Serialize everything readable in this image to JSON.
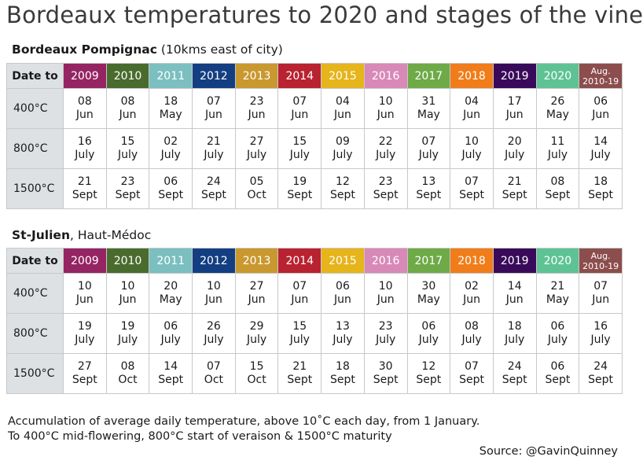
{
  "title": "Bordeaux temperatures to 2020 and stages of the vine",
  "tables": [
    {
      "name_bold": "Bordeaux Pompignac",
      "name_rest": " (10kms east of city)",
      "corner": "Date to",
      "years": [
        "2009",
        "2010",
        "2011",
        "2012",
        "2013",
        "2014",
        "2015",
        "2016",
        "2017",
        "2018",
        "2019",
        "2020"
      ],
      "avg_line1": "Aug.",
      "avg_line2": "2010-19",
      "rows": [
        {
          "label": "400°C",
          "cells": [
            [
              "08",
              "Jun"
            ],
            [
              "08",
              "Jun"
            ],
            [
              "18",
              "May"
            ],
            [
              "07",
              "Jun"
            ],
            [
              "23",
              "Jun"
            ],
            [
              "07",
              "Jun"
            ],
            [
              "04",
              "Jun"
            ],
            [
              "10",
              "Jun"
            ],
            [
              "31",
              "May"
            ],
            [
              "04",
              "Jun"
            ],
            [
              "17",
              "Jun"
            ],
            [
              "26",
              "May"
            ],
            [
              "06",
              "Jun"
            ]
          ]
        },
        {
          "label": "800°C",
          "cells": [
            [
              "16",
              "July"
            ],
            [
              "15",
              "July"
            ],
            [
              "02",
              "July"
            ],
            [
              "21",
              "July"
            ],
            [
              "27",
              "July"
            ],
            [
              "15",
              "July"
            ],
            [
              "09",
              "July"
            ],
            [
              "22",
              "July"
            ],
            [
              "07",
              "July"
            ],
            [
              "10",
              "July"
            ],
            [
              "20",
              "July"
            ],
            [
              "11",
              "July"
            ],
            [
              "14",
              "July"
            ]
          ]
        },
        {
          "label": "1500°C",
          "cells": [
            [
              "21",
              "Sept"
            ],
            [
              "23",
              "Sept"
            ],
            [
              "06",
              "Sept"
            ],
            [
              "24",
              "Sept"
            ],
            [
              "05",
              "Oct"
            ],
            [
              "19",
              "Sept"
            ],
            [
              "12",
              "Sept"
            ],
            [
              "23",
              "Sept"
            ],
            [
              "13",
              "Sept"
            ],
            [
              "07",
              "Sept"
            ],
            [
              "21",
              "Sept"
            ],
            [
              "08",
              "Sept"
            ],
            [
              "18",
              "Sept"
            ]
          ]
        }
      ]
    },
    {
      "name_bold": "St-Julien",
      "name_rest": ", Haut-Médoc",
      "corner": "Date to",
      "years": [
        "2009",
        "2010",
        "2011",
        "2012",
        "2013",
        "2014",
        "2015",
        "2016",
        "2017",
        "2018",
        "2019",
        "2020"
      ],
      "avg_line1": "Aug.",
      "avg_line2": "2010-19",
      "rows": [
        {
          "label": "400°C",
          "cells": [
            [
              "10",
              "Jun"
            ],
            [
              "10",
              "Jun"
            ],
            [
              "20",
              "May"
            ],
            [
              "10",
              "Jun"
            ],
            [
              "27",
              "Jun"
            ],
            [
              "07",
              "Jun"
            ],
            [
              "06",
              "Jun"
            ],
            [
              "10",
              "Jun"
            ],
            [
              "30",
              "May"
            ],
            [
              "02",
              "Jun"
            ],
            [
              "14",
              "Jun"
            ],
            [
              "21",
              "May"
            ],
            [
              "07",
              "Jun"
            ]
          ]
        },
        {
          "label": "800°C",
          "cells": [
            [
              "19",
              "July"
            ],
            [
              "19",
              "July"
            ],
            [
              "06",
              "July"
            ],
            [
              "26",
              "July"
            ],
            [
              "29",
              "July"
            ],
            [
              "15",
              "July"
            ],
            [
              "13",
              "July"
            ],
            [
              "23",
              "July"
            ],
            [
              "06",
              "July"
            ],
            [
              "08",
              "July"
            ],
            [
              "18",
              "July"
            ],
            [
              "06",
              "July"
            ],
            [
              "16",
              "July"
            ]
          ]
        },
        {
          "label": "1500°C",
          "cells": [
            [
              "27",
              "Sept"
            ],
            [
              "08",
              "Oct"
            ],
            [
              "14",
              "Sept"
            ],
            [
              "07",
              "Oct"
            ],
            [
              "15",
              "Oct"
            ],
            [
              "21",
              "Sept"
            ],
            [
              "18",
              "Sept"
            ],
            [
              "30",
              "Sept"
            ],
            [
              "12",
              "Sept"
            ],
            [
              "07",
              "Sept"
            ],
            [
              "24",
              "Sept"
            ],
            [
              "06",
              "Sept"
            ],
            [
              "24",
              "Sept"
            ]
          ]
        }
      ]
    }
  ],
  "header_colors": [
    "#952463",
    "#4a6b2e",
    "#7bbfc0",
    "#133f82",
    "#c9982f",
    "#b92230",
    "#e6b41b",
    "#d889b8",
    "#6eaa48",
    "#f07d1a",
    "#3a0a5a",
    "#5ec394",
    "#8c4d4d"
  ],
  "footnote_line1": "Accumulation of average daily temperature, above 10˚C each day, from 1 January.",
  "footnote_line2": "To 400°C mid-flowering, 800°C start of veraison & 1500°C maturity",
  "source": "Source: @GavinQuinney"
}
